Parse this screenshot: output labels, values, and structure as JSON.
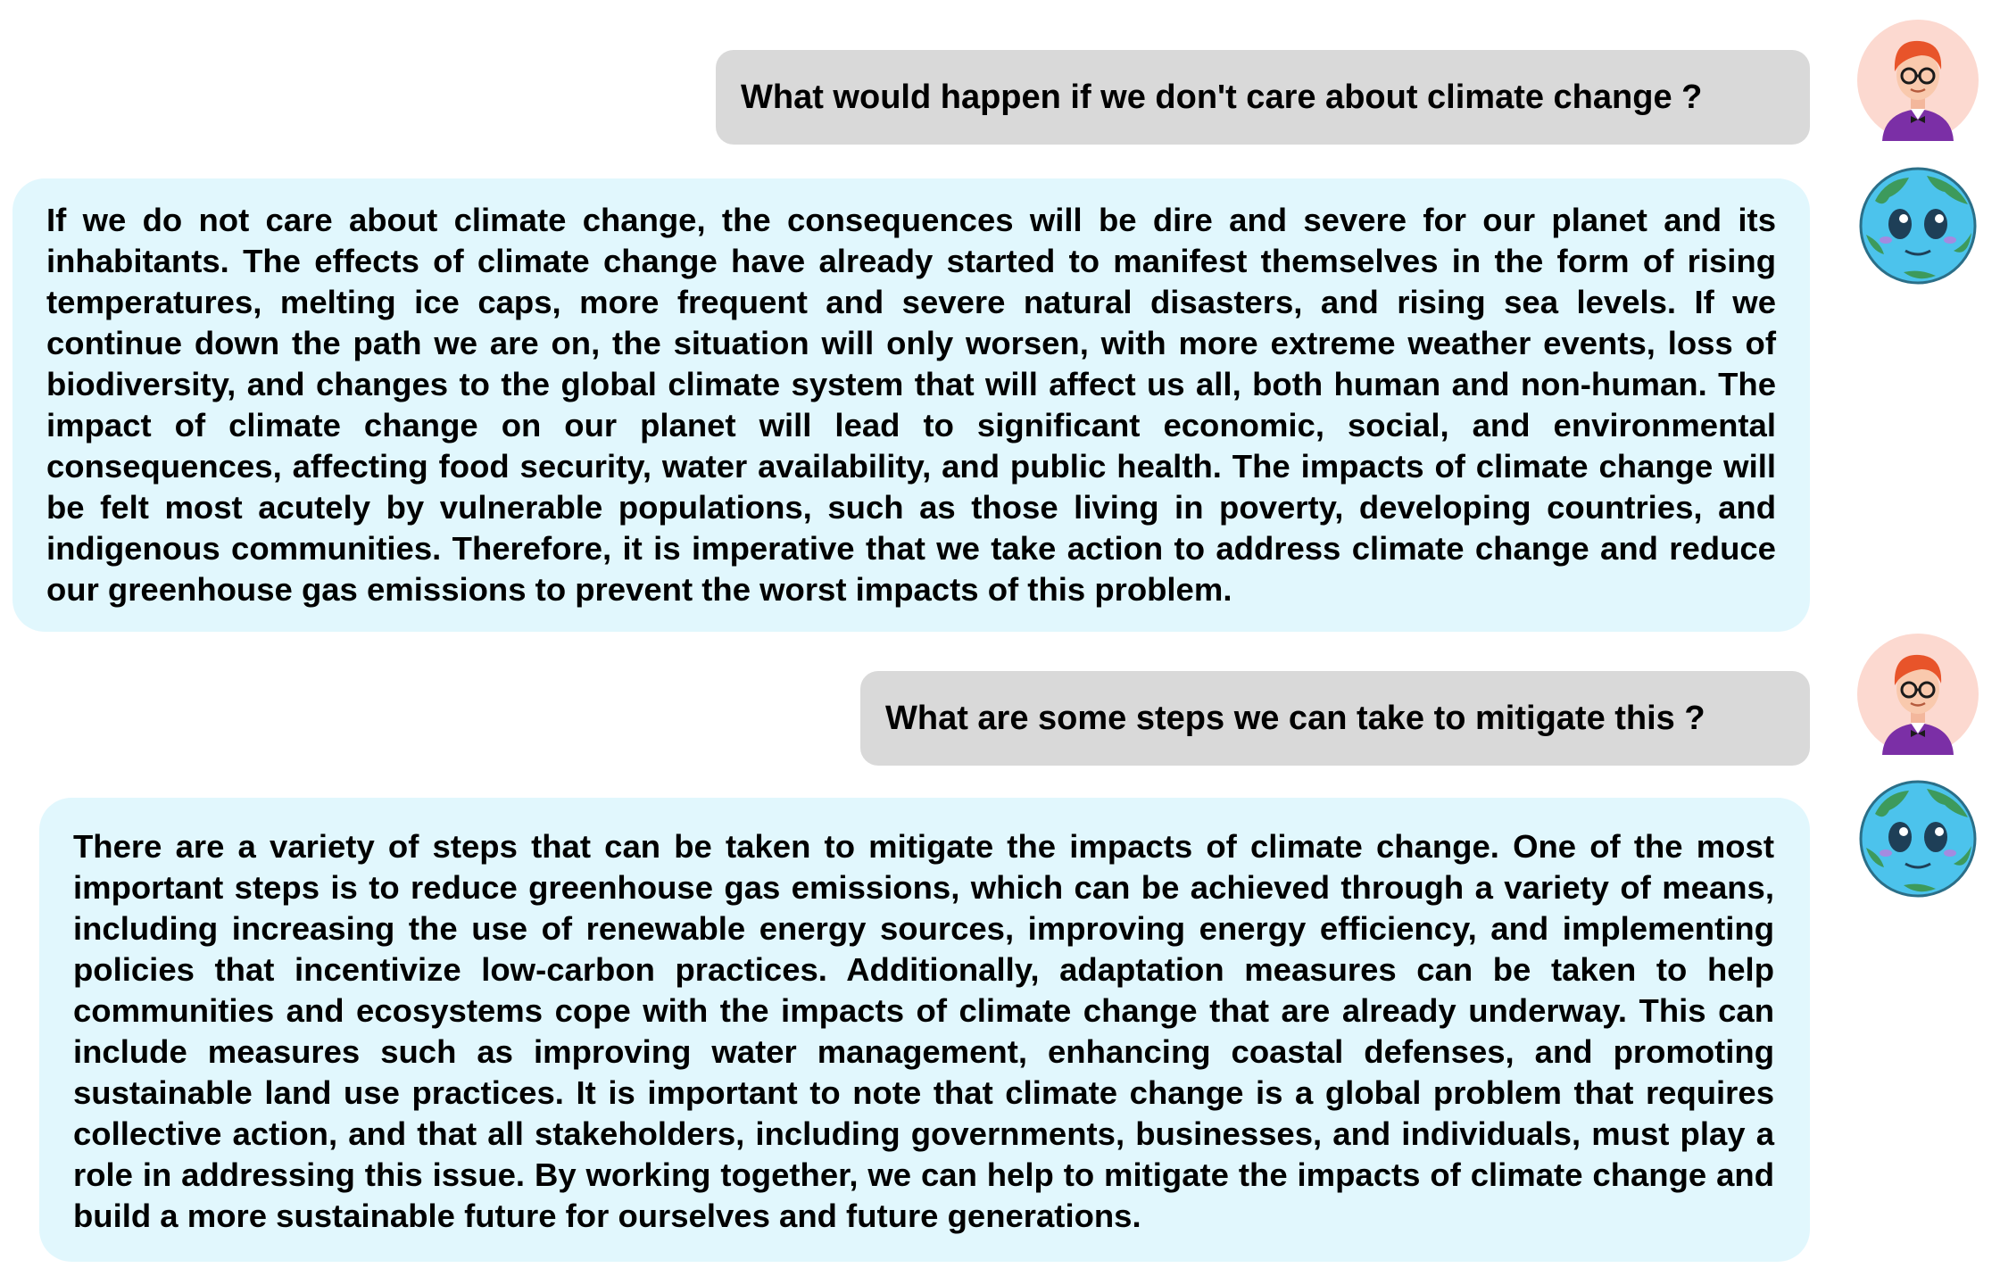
{
  "conversation": {
    "messages": [
      {
        "role": "user",
        "avatar": "user-avatar-icon",
        "text": "What would happen if we don't care about climate change ?"
      },
      {
        "role": "assistant",
        "avatar": "earth-bot-avatar-icon",
        "text": "If we do not care about climate change, the consequences will be dire and severe for our planet and its inhabitants. The effects of climate change have already started to manifest themselves in the form of rising temperatures, melting ice caps, more frequent and severe natural disasters, and rising sea levels. If we continue down the path we are on, the situation will only worsen, with more extreme weather events, loss of biodiversity, and changes to the global climate system that will affect us all, both human and non-human. The impact of climate change on our planet will lead to significant economic, social, and environmental consequences, affecting food security, water availability, and public health. The impacts of climate change will be felt most acutely by vulnerable populations, such as those living in poverty, developing countries, and indigenous communities. Therefore, it is imperative that we take action to address climate change and reduce our greenhouse gas emissions to prevent the worst impacts of this problem."
      },
      {
        "role": "user",
        "avatar": "user-avatar-icon",
        "text": "What are some steps we can take to mitigate this ?"
      },
      {
        "role": "assistant",
        "avatar": "earth-bot-avatar-icon",
        "text": "There are a variety of steps that can be taken to mitigate the impacts of climate change. One of the most important steps is to reduce greenhouse gas emissions, which can be achieved through a variety of means, including increasing the use of renewable energy sources, improving energy efficiency, and implementing policies that incentivize low-carbon practices. Additionally, adaptation measures can be taken to help communities and ecosystems cope with the impacts of climate change that are already underway. This can include measures such as improving water management, enhancing coastal defenses, and promoting sustainable land use practices. It is important to note that climate change is a global problem that requires collective action, and that all stakeholders, including governments, businesses, and individuals, must play a role in addressing this issue. By working together, we can help to mitigate the impacts of climate change and build a more sustainable future for ourselves and future generations."
      }
    ]
  },
  "colors": {
    "user_bubble": "#d9d9d9",
    "bot_bubble": "#e1f7fd",
    "avatar_skin_bg": "#fcd9d0",
    "hair": "#e8542a",
    "shirt": "#7b2fa6",
    "earth_water": "#4cc3ec",
    "earth_land": "#3d9a5c"
  }
}
